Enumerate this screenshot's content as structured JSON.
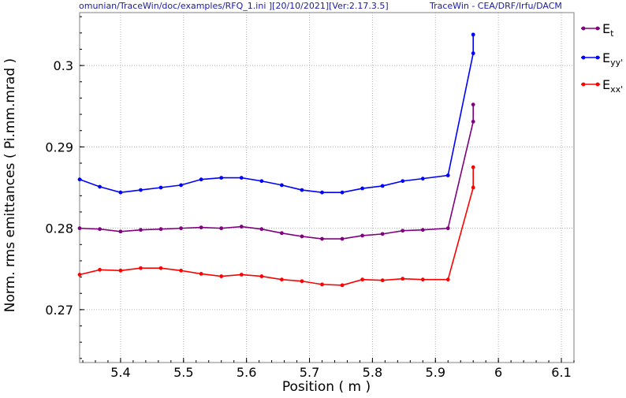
{
  "header": {
    "left": "omunian/TraceWin/doc/examples/RFQ_1.ini ][20/10/2021][Ver:2.17.3.5]",
    "right": "TraceWin - CEA/DRF/Irfu/DACM"
  },
  "chart_data": {
    "type": "line",
    "xlabel": "Position ( m )",
    "ylabel": "Norm. rms emittances ( Pi.mm.mrad )",
    "xlim": [
      5.335,
      6.12
    ],
    "ylim": [
      0.2635,
      0.3065
    ],
    "x_ticks": [
      5.4,
      5.5,
      5.6,
      5.7,
      5.8,
      5.9,
      6,
      6.1
    ],
    "x_tick_labels": [
      "5.4",
      "5.5",
      "5.6",
      "5.7",
      "5.8",
      "5.9",
      "6",
      "6.1"
    ],
    "y_ticks": [
      0.27,
      0.28,
      0.29,
      0.3
    ],
    "y_tick_labels": [
      "0.27",
      "0.28",
      "0.29",
      "0.3"
    ],
    "grid": true,
    "legend_position": "right",
    "x": [
      5.335,
      5.367,
      5.4,
      5.432,
      5.464,
      5.496,
      5.528,
      5.56,
      5.592,
      5.624,
      5.656,
      5.688,
      5.72,
      5.752,
      5.784,
      5.816,
      5.848,
      5.88,
      5.92,
      5.96,
      5.96
    ],
    "series": [
      {
        "name_main": "E",
        "name_sub": "t",
        "color": "#800080",
        "values": [
          0.28,
          0.2799,
          0.2796,
          0.2798,
          0.2799,
          0.28,
          0.2801,
          0.28,
          0.2802,
          0.2799,
          0.2794,
          0.279,
          0.2787,
          0.2787,
          0.2791,
          0.2793,
          0.2797,
          0.2798,
          0.28,
          0.2931,
          0.2952
        ]
      },
      {
        "name_main": "E",
        "name_sub": "yy'",
        "color": "#0000ff",
        "values": [
          0.286,
          0.2851,
          0.2844,
          0.2847,
          0.285,
          0.2853,
          0.286,
          0.2862,
          0.2862,
          0.2858,
          0.2853,
          0.2847,
          0.2844,
          0.2844,
          0.2849,
          0.2852,
          0.2858,
          0.2861,
          0.2865,
          0.3015,
          0.3038
        ]
      },
      {
        "name_main": "E",
        "name_sub": "xx'",
        "color": "#ff0000",
        "values": [
          0.2743,
          0.2749,
          0.2748,
          0.2751,
          0.2751,
          0.2748,
          0.2744,
          0.2741,
          0.2743,
          0.2741,
          0.2737,
          0.2735,
          0.2731,
          0.273,
          0.2737,
          0.2736,
          0.2738,
          0.2737,
          0.2737,
          0.285,
          0.2875
        ]
      }
    ]
  }
}
